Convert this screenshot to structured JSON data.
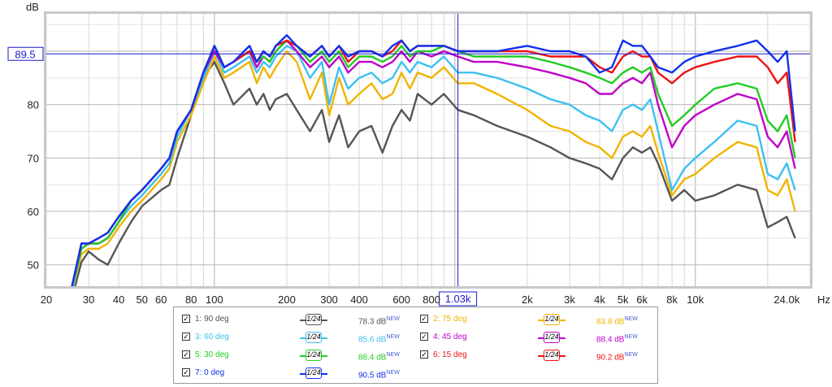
{
  "chart_data": {
    "type": "line",
    "ylabel": "dB",
    "xunit": "Hz",
    "x_log_range": [
      20,
      30000
    ],
    "ylim": [
      46,
      97
    ],
    "yticks": [
      50,
      60,
      70,
      80
    ],
    "xtick_labels": [
      {
        "f": 20,
        "t": "20"
      },
      {
        "f": 30,
        "t": "30"
      },
      {
        "f": 40,
        "t": "40"
      },
      {
        "f": 50,
        "t": "50"
      },
      {
        "f": 60,
        "t": "60"
      },
      {
        "f": 80,
        "t": "80"
      },
      {
        "f": 100,
        "t": "100"
      },
      {
        "f": 200,
        "t": "200"
      },
      {
        "f": 300,
        "t": "300"
      },
      {
        "f": 400,
        "t": "400"
      },
      {
        "f": 600,
        "t": "600"
      },
      {
        "f": 800,
        "t": "800"
      },
      {
        "f": 2000,
        "t": "2k"
      },
      {
        "f": 3000,
        "t": "3k"
      },
      {
        "f": 4000,
        "t": "4k"
      },
      {
        "f": 5000,
        "t": "5k"
      },
      {
        "f": 6000,
        "t": "6k"
      },
      {
        "f": 8000,
        "t": "8k"
      },
      {
        "f": 10000,
        "t": "10k"
      },
      {
        "f": 24000,
        "t": "24.0k"
      }
    ],
    "grid": true,
    "cursor": {
      "freq": 1030,
      "freq_label": "1.03k",
      "db": 89.5,
      "db_label": "89.5",
      "color": "#1a1acc"
    },
    "x": [
      25,
      28,
      30,
      33,
      36,
      40,
      45,
      50,
      60,
      65,
      70,
      80,
      90,
      100,
      110,
      120,
      140,
      150,
      160,
      170,
      180,
      200,
      220,
      250,
      280,
      300,
      330,
      360,
      400,
      450,
      500,
      550,
      600,
      650,
      700,
      800,
      900,
      1030,
      1200,
      1500,
      2000,
      2500,
      3000,
      3500,
      4000,
      4500,
      5000,
      5500,
      6000,
      6500,
      7000,
      8000,
      9000,
      10000,
      12000,
      15000,
      18000,
      20000,
      22000,
      24000,
      26000
    ],
    "series": [
      {
        "name": "1: 90 deg",
        "color": "#555555",
        "smoothing": "1/24",
        "level": "78.3 dB",
        "values": [
          42,
          50.5,
          52.5,
          51,
          50,
          54,
          58,
          61,
          64,
          65,
          70,
          78,
          85,
          88,
          84,
          80,
          83,
          80,
          82,
          79,
          81,
          82,
          79,
          75,
          79,
          73,
          78,
          72,
          75,
          76,
          71,
          76,
          79,
          77,
          82,
          80,
          82,
          79,
          78,
          76,
          74,
          72,
          70,
          69,
          68,
          66,
          70,
          72,
          71,
          72,
          69,
          62,
          64,
          62,
          63,
          65,
          64,
          57,
          58,
          59,
          55
        ]
      },
      {
        "name": "2: 75 deg",
        "color": "#f0b400",
        "smoothing": "1/24",
        "level": "83.8 dB",
        "values": [
          43,
          52,
          53,
          53,
          54,
          57,
          60,
          62,
          66,
          68,
          73,
          78,
          84,
          89,
          85,
          86,
          88,
          84,
          87,
          85,
          87,
          90,
          88,
          81,
          86,
          78,
          85,
          80,
          82,
          84,
          81,
          82,
          86,
          83,
          86,
          85,
          87,
          84,
          84,
          82,
          79,
          76,
          75,
          73,
          72,
          70,
          74,
          75,
          74,
          76,
          71,
          63,
          66,
          67,
          70,
          73,
          72,
          64,
          63,
          66,
          60
        ]
      },
      {
        "name": "3: 60 deg",
        "color": "#3cc0f0",
        "smoothing": "1/24",
        "level": "85.6 dB",
        "values": [
          43,
          53,
          54,
          54,
          55,
          58,
          61,
          63,
          67,
          69,
          74,
          79,
          85,
          90,
          86,
          87,
          89,
          86,
          88,
          87,
          89,
          91,
          90,
          85,
          88,
          80,
          87,
          83,
          85,
          86,
          84,
          85,
          88,
          86,
          88,
          87,
          89,
          86,
          86,
          85,
          83,
          81,
          80,
          78,
          77,
          75,
          79,
          80,
          79,
          81,
          75,
          64,
          68,
          70,
          73,
          77,
          76,
          67,
          66,
          69,
          64
        ]
      },
      {
        "name": "4: 45 deg",
        "color": "#c000c8",
        "smoothing": "1/24",
        "level": "88.4 dB",
        "values": [
          44,
          53,
          54,
          54,
          55,
          58,
          62,
          64,
          68,
          70,
          75,
          79,
          86,
          90,
          87,
          88,
          90,
          87,
          89,
          88,
          90,
          92,
          90,
          87,
          89,
          87,
          89,
          86,
          88,
          88,
          87,
          88,
          90,
          88,
          90,
          89,
          90,
          89,
          88,
          88,
          87,
          86,
          85,
          84,
          82,
          82,
          84,
          85,
          84,
          86,
          80,
          72,
          76,
          78,
          80,
          82,
          81,
          74,
          72,
          75,
          68
        ]
      },
      {
        "name": "5: 30 deg",
        "color": "#22cc22",
        "smoothing": "1/24",
        "level": "88.4 dB",
        "values": [
          44,
          53,
          54,
          54,
          55,
          58,
          62,
          64,
          68,
          70,
          75,
          79,
          86,
          91,
          87,
          88,
          90,
          88,
          89,
          88,
          90,
          92,
          91,
          88,
          90,
          88,
          90,
          87,
          89,
          89,
          88,
          89,
          91,
          89,
          90,
          90,
          91,
          90,
          89,
          89,
          89,
          88,
          87,
          86,
          85,
          84,
          86,
          87,
          86,
          87,
          82,
          76,
          78,
          80,
          83,
          84,
          83,
          77,
          75,
          78,
          70
        ]
      },
      {
        "name": "6: 15 deg",
        "color": "#ee1111",
        "smoothing": "1/24",
        "level": "90.2 dB",
        "values": [
          44,
          54,
          54,
          55,
          56,
          59,
          62,
          64,
          68,
          70,
          75,
          79,
          86,
          91,
          87,
          88,
          90,
          88,
          90,
          89,
          91,
          92,
          91,
          89,
          91,
          89,
          91,
          88,
          90,
          90,
          89,
          90,
          92,
          90,
          91,
          91,
          91,
          90,
          90,
          90,
          90,
          89,
          89,
          89,
          87,
          86,
          89,
          90,
          89,
          89,
          86,
          84,
          86,
          87,
          88,
          89,
          89,
          87,
          84,
          86,
          73
        ]
      },
      {
        "name": "7: 0 deg",
        "color": "#1030ee",
        "smoothing": "1/24",
        "level": "90.5 dB",
        "values": [
          44,
          54,
          54,
          55,
          56,
          59,
          62,
          64,
          68,
          70,
          75,
          79,
          86,
          91,
          87,
          88,
          91,
          88,
          90,
          89,
          91,
          93,
          91,
          89,
          91,
          89,
          91,
          89,
          90,
          90,
          89,
          91,
          92,
          90,
          91,
          91,
          91,
          90,
          90,
          90,
          91,
          90,
          90,
          89,
          86,
          87,
          92,
          91,
          91,
          89,
          87,
          86,
          88,
          89,
          90,
          91,
          92,
          90,
          88,
          90,
          75
        ]
      }
    ]
  },
  "legend": {
    "new_badge": "NEW"
  }
}
